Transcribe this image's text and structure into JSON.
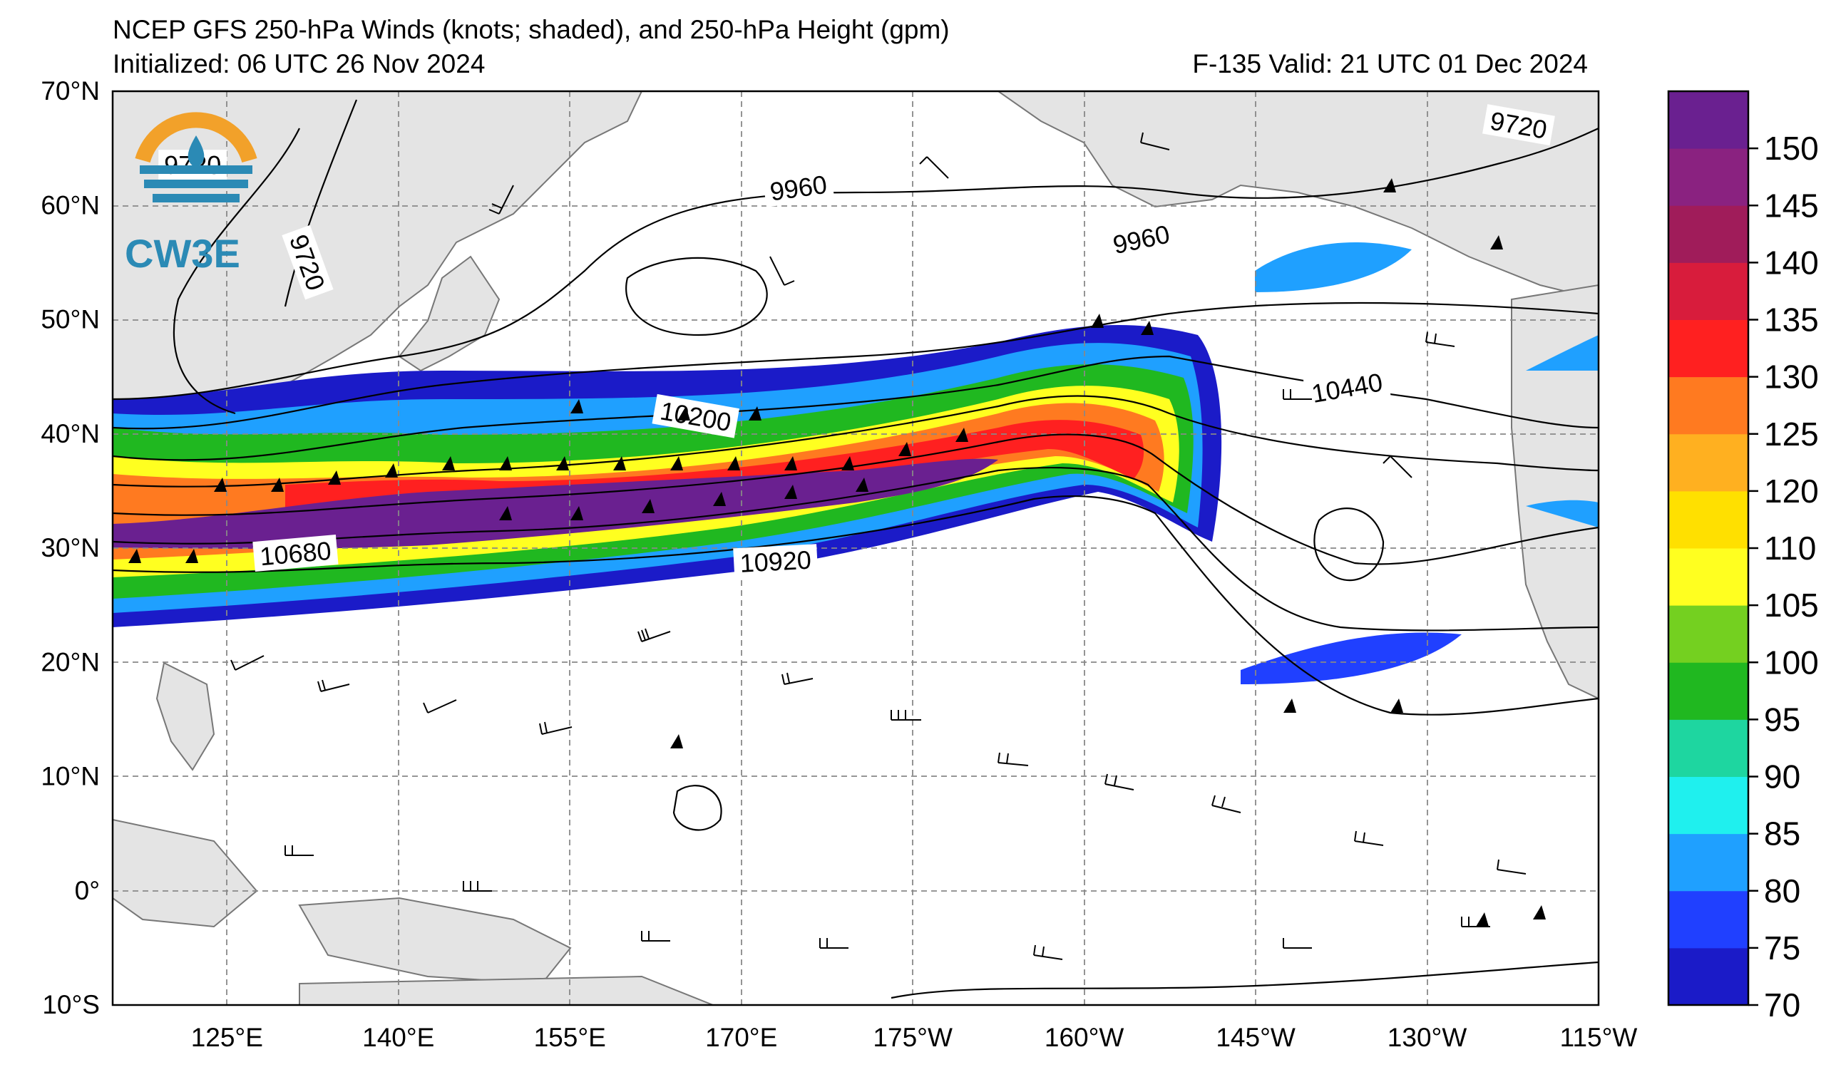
{
  "header": {
    "title": "NCEP GFS 250-hPa Winds (knots; shaded), and 250-hPa Height (gpm)",
    "initialized": "Initialized: 06 UTC 26 Nov 2024",
    "valid": "F-135  Valid: 21 UTC 01 Dec 2024"
  },
  "logo": {
    "text": "CW3E"
  },
  "map": {
    "lon_range": [
      115,
      245
    ],
    "lat_range": [
      -10,
      70
    ],
    "lat_labels": [
      {
        "lat": 70,
        "label": "70°N"
      },
      {
        "lat": 60,
        "label": "60°N"
      },
      {
        "lat": 50,
        "label": "50°N"
      },
      {
        "lat": 40,
        "label": "40°N"
      },
      {
        "lat": 30,
        "label": "30°N"
      },
      {
        "lat": 20,
        "label": "20°N"
      },
      {
        "lat": 10,
        "label": "10°N"
      },
      {
        "lat": 0,
        "label": "0°"
      },
      {
        "lat": -10,
        "label": "10°S"
      }
    ],
    "lon_labels": [
      {
        "lon": 125,
        "label": "125°E"
      },
      {
        "lon": 140,
        "label": "140°E"
      },
      {
        "lon": 155,
        "label": "155°E"
      },
      {
        "lon": 170,
        "label": "170°E"
      },
      {
        "lon": 185,
        "label": "175°W"
      },
      {
        "lon": 200,
        "label": "160°W"
      },
      {
        "lon": 215,
        "label": "145°W"
      },
      {
        "lon": 230,
        "label": "130°W"
      },
      {
        "lon": 245,
        "label": "115°W"
      }
    ],
    "height_contour_labels": [
      {
        "text": "9720",
        "lon": 132,
        "lat": 55,
        "angle": 70
      },
      {
        "text": "9720",
        "lon": 122,
        "lat": 63.5,
        "angle": 0
      },
      {
        "text": "9720",
        "lon": 238,
        "lat": 67,
        "angle": 10
      },
      {
        "text": "9960",
        "lon": 175,
        "lat": 61.5,
        "angle": -8
      },
      {
        "text": "9960",
        "lon": 205,
        "lat": 57,
        "angle": -12
      },
      {
        "text": "10200",
        "lon": 166,
        "lat": 41.5,
        "angle": 10
      },
      {
        "text": "10440",
        "lon": 223,
        "lat": 44,
        "angle": -10
      },
      {
        "text": "10680",
        "lon": 131,
        "lat": 29.5,
        "angle": -5
      },
      {
        "text": "10920",
        "lon": 173,
        "lat": 28.8,
        "angle": -3
      }
    ]
  },
  "colorbar": {
    "ticks": [
      "70",
      "75",
      "80",
      "85",
      "90",
      "95",
      "100",
      "105",
      "110",
      "120",
      "125",
      "130",
      "135",
      "140",
      "145",
      "150"
    ],
    "colors": [
      "#1b1bc8",
      "#2040ff",
      "#1fa0ff",
      "#1ff0ee",
      "#1ed6a0",
      "#20b820",
      "#74d020",
      "#ffff20",
      "#ffe000",
      "#ffb020",
      "#ff7a20",
      "#ff2020",
      "#d81c3c",
      "#a01c5a",
      "#8a2280",
      "#6a2090"
    ]
  }
}
